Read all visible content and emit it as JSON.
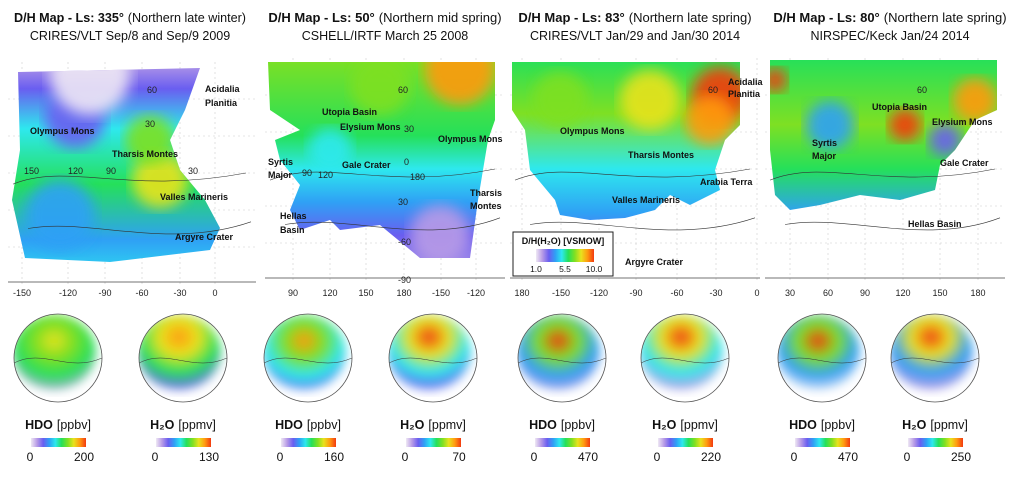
{
  "colors": {
    "scale": [
      "#efe8f4",
      "#b79be6",
      "#6a5ef0",
      "#2fa0f5",
      "#2ee8ee",
      "#25e05a",
      "#7ee023",
      "#e8e21e",
      "#ff9a10",
      "#f23a10"
    ]
  },
  "legend": {
    "title": "D/H(H₂O) [VSMOW]",
    "ticks": [
      "1.0",
      "5.5",
      "10.0"
    ]
  },
  "panels": [
    {
      "title_bold": "D/H Map - Ls: 335°",
      "title_rest": "(Northern late winter)",
      "subtitle": "CRIRES/VLT Sep/8 and Sep/9 2009",
      "x_ticks": [
        "-150",
        "-120",
        "-90",
        "-60",
        "-30",
        "0"
      ],
      "lat_labels": [
        "60",
        "30",
        "150",
        "120",
        "90",
        "30"
      ],
      "features": [
        "Acidalia",
        "Planitia",
        "Olympus Mons",
        "Tharsis Montes",
        "Valles Marineris",
        "Argyre Crater"
      ],
      "globes": [
        {
          "species": "HDO",
          "unit": "[ppbv]",
          "min": "0",
          "max": "200"
        },
        {
          "species": "H₂O",
          "unit": "[ppmv]",
          "min": "0",
          "max": "130"
        }
      ]
    },
    {
      "title_bold": "D/H Map - Ls: 50°",
      "title_rest": "(Northern mid spring)",
      "subtitle": "CSHELL/IRTF March 25 2008",
      "x_ticks": [
        "90",
        "120",
        "150",
        "180",
        "-150",
        "-120"
      ],
      "lat_labels": [
        "60",
        "30",
        "0",
        "90",
        "120",
        "180",
        "30",
        "-60",
        "-90"
      ],
      "features": [
        "Utopia Basin",
        "Elysium Mons",
        "Olympus Mons",
        "Syrtis",
        "Major",
        "Gale Crater",
        "Tharsis",
        "Montes",
        "Hellas",
        "Basin"
      ],
      "globes": [
        {
          "species": "HDO",
          "unit": "[ppbv]",
          "min": "0",
          "max": "160"
        },
        {
          "species": "H₂O",
          "unit": "[ppmv]",
          "min": "0",
          "max": "70"
        }
      ]
    },
    {
      "title_bold": "D/H Map - Ls: 83°",
      "title_rest": "(Northern late spring)",
      "subtitle": "CRIRES/VLT Jan/29 and Jan/30 2014",
      "x_ticks": [
        "180",
        "-150",
        "-120",
        "-90",
        "-60",
        "-30",
        "0"
      ],
      "lat_labels": [
        "60"
      ],
      "features": [
        "Acidalia",
        "Planitia",
        "Olympus Mons",
        "Tharsis Montes",
        "Arabia Terra",
        "Valles Marineris",
        "Argyre Crater"
      ],
      "globes": [
        {
          "species": "HDO",
          "unit": "[ppbv]",
          "min": "0",
          "max": "470"
        },
        {
          "species": "H₂O",
          "unit": "[ppmv]",
          "min": "0",
          "max": "220"
        }
      ]
    },
    {
      "title_bold": "D/H Map - Ls: 80°",
      "title_rest": "(Northern late spring)",
      "subtitle": "NIRSPEC/Keck Jan/24 2014",
      "x_ticks": [
        "30",
        "60",
        "90",
        "120",
        "150",
        "180"
      ],
      "lat_labels": [
        "60"
      ],
      "features": [
        "Utopia Basin",
        "Elysium Mons",
        "Syrtis",
        "Major",
        "Gale Crater",
        "Hellas Basin"
      ],
      "globes": [
        {
          "species": "HDO",
          "unit": "[ppbv]",
          "min": "0",
          "max": "470"
        },
        {
          "species": "H₂O",
          "unit": "[ppmv]",
          "min": "0",
          "max": "250"
        }
      ]
    }
  ]
}
